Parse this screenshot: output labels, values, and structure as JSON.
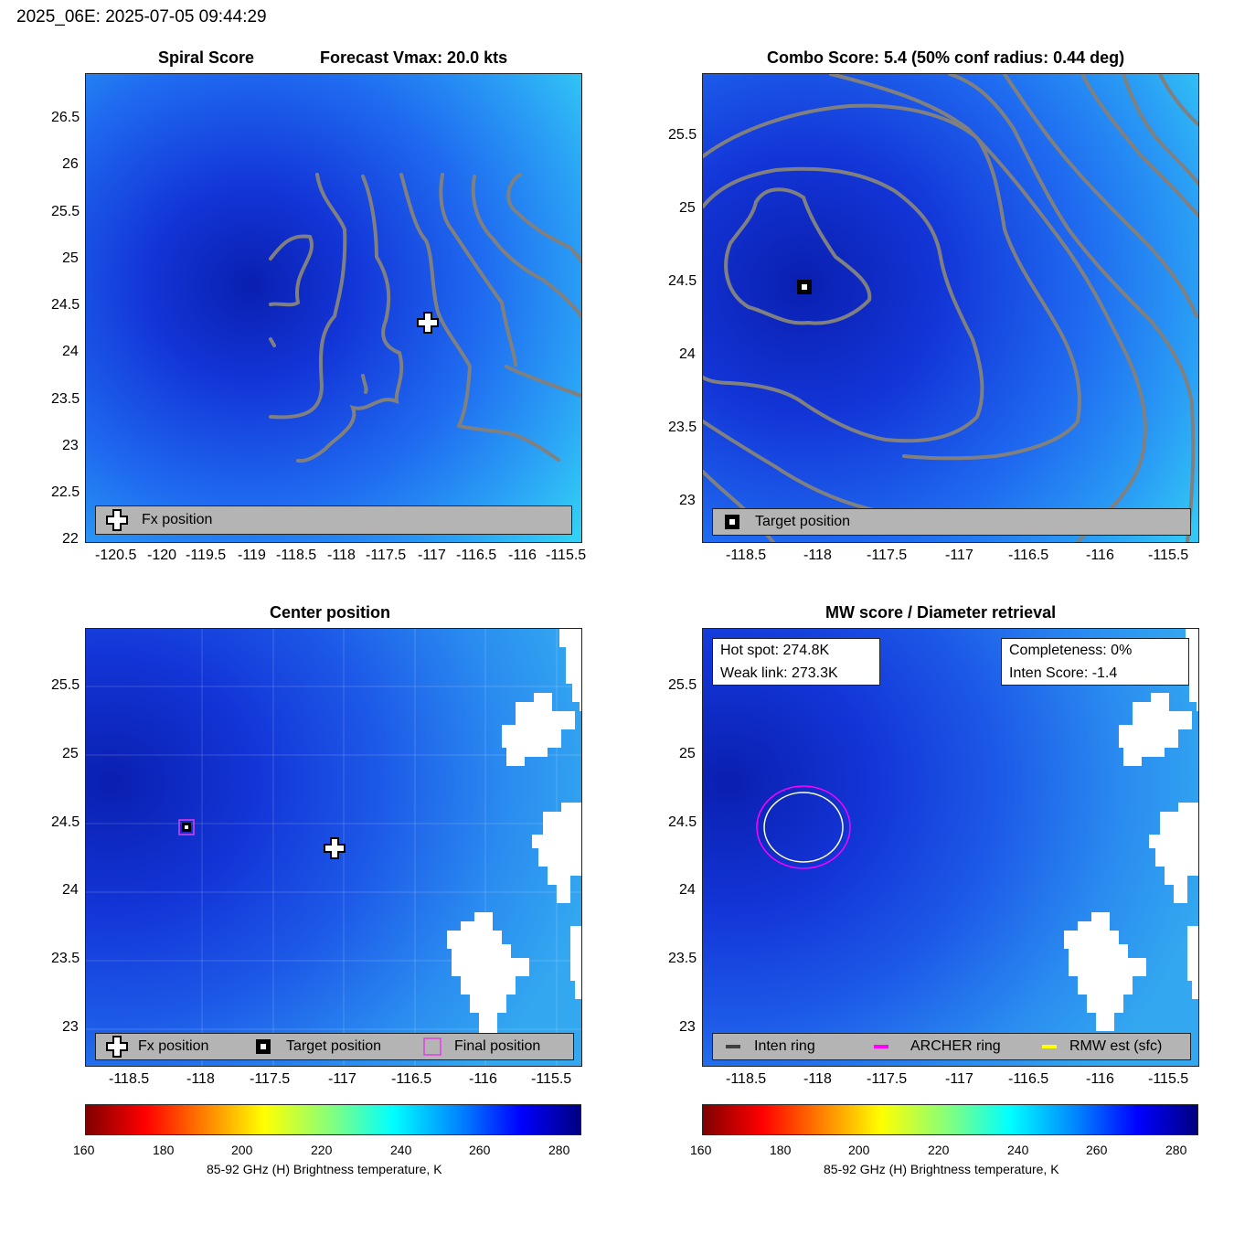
{
  "figure_title": "2025_06E: 2025-07-05 09:44:29",
  "colors": {
    "contour": "#808080",
    "legend_bg": "#b4b4b4",
    "final_position": "#e040e0",
    "archer_ring": "#ff00ff",
    "rmw_est": "#ffff00",
    "inten_ring": "#404040"
  },
  "chart_data": [
    {
      "type": "heatmap",
      "id": "spiral",
      "title_left": "Spiral Score",
      "title_right": "Forecast Vmax: 20.0 kts",
      "xlim": [
        -120.8,
        -115.5
      ],
      "ylim": [
        22,
        27
      ],
      "xticks": [
        "-120.5",
        "-120",
        "-119.5",
        "-119",
        "-118.5",
        "-118",
        "-117.5",
        "-117",
        "-116.5",
        "-116",
        "-115.5"
      ],
      "yticks": [
        "22",
        "22.5",
        "23",
        "23.5",
        "24",
        "24.5",
        "25",
        "25.5",
        "26",
        "26.5"
      ],
      "markers": [
        {
          "kind": "fx",
          "lon": -117.05,
          "lat": 24.32
        }
      ],
      "legend": [
        {
          "icon": "fx-position-icon",
          "label": "Fx position"
        }
      ]
    },
    {
      "type": "heatmap",
      "id": "combo",
      "title": "Combo Score: 5.4  (50% conf radius: 0.44 deg)",
      "xlim": [
        -118.83,
        -115.32
      ],
      "ylim": [
        22.72,
        25.92
      ],
      "xticks": [
        "-118.5",
        "-118",
        "-117.5",
        "-117",
        "-116.5",
        "-116",
        "-115.5"
      ],
      "yticks": [
        "23",
        "23.5",
        "24",
        "24.5",
        "25",
        "25.5"
      ],
      "markers": [
        {
          "kind": "target",
          "lon": -118.12,
          "lat": 24.47
        }
      ],
      "legend": [
        {
          "icon": "target-position-icon",
          "label": "Target position"
        }
      ]
    },
    {
      "type": "heatmap",
      "id": "center",
      "title": "Center position",
      "xlim": [
        -118.83,
        -115.32
      ],
      "ylim": [
        22.72,
        25.92
      ],
      "xticks": [
        "-118.5",
        "-118",
        "-117.5",
        "-117",
        "-116.5",
        "-116",
        "-115.5"
      ],
      "yticks": [
        "23",
        "23.5",
        "24",
        "24.5",
        "25",
        "25.5"
      ],
      "markers": [
        {
          "kind": "target",
          "lon": -118.12,
          "lat": 24.47
        },
        {
          "kind": "final",
          "lon": -118.12,
          "lat": 24.47
        },
        {
          "kind": "fx",
          "lon": -117.08,
          "lat": 24.32
        }
      ],
      "legend": [
        {
          "icon": "fx-position-icon",
          "label": "Fx position"
        },
        {
          "icon": "target-position-icon",
          "label": "Target position"
        },
        {
          "icon": "final-position-icon",
          "label": "Final position"
        }
      ]
    },
    {
      "type": "heatmap",
      "id": "mw",
      "title": "MW score / Diameter retrieval",
      "xlim": [
        -118.83,
        -115.32
      ],
      "ylim": [
        22.72,
        25.92
      ],
      "xticks": [
        "-118.5",
        "-118",
        "-117.5",
        "-117",
        "-116.5",
        "-116",
        "-115.5"
      ],
      "yticks": [
        "23",
        "23.5",
        "24",
        "24.5",
        "25",
        "25.5"
      ],
      "rings": {
        "center_lon": -118.12,
        "center_lat": 24.47,
        "inner_radius_deg": 0.28,
        "outer_radius_deg": 0.32
      },
      "info_left": [
        "Hot spot: 274.8K",
        "Weak link: 273.3K"
      ],
      "info_right": [
        "Completeness: 0%",
        "Inten Score: -1.4"
      ],
      "legend": [
        {
          "icon": "inten-ring-icon",
          "label": "Inten ring"
        },
        {
          "icon": "archer-ring-icon",
          "label": "ARCHER ring"
        },
        {
          "icon": "rmw-est-icon",
          "label": "RMW est (sfc)"
        }
      ]
    }
  ],
  "colorbar": {
    "range": [
      160,
      285
    ],
    "ticks": [
      "160",
      "180",
      "200",
      "220",
      "240",
      "260",
      "280"
    ],
    "label": "85-92 GHz (H) Brightness temperature, K"
  }
}
